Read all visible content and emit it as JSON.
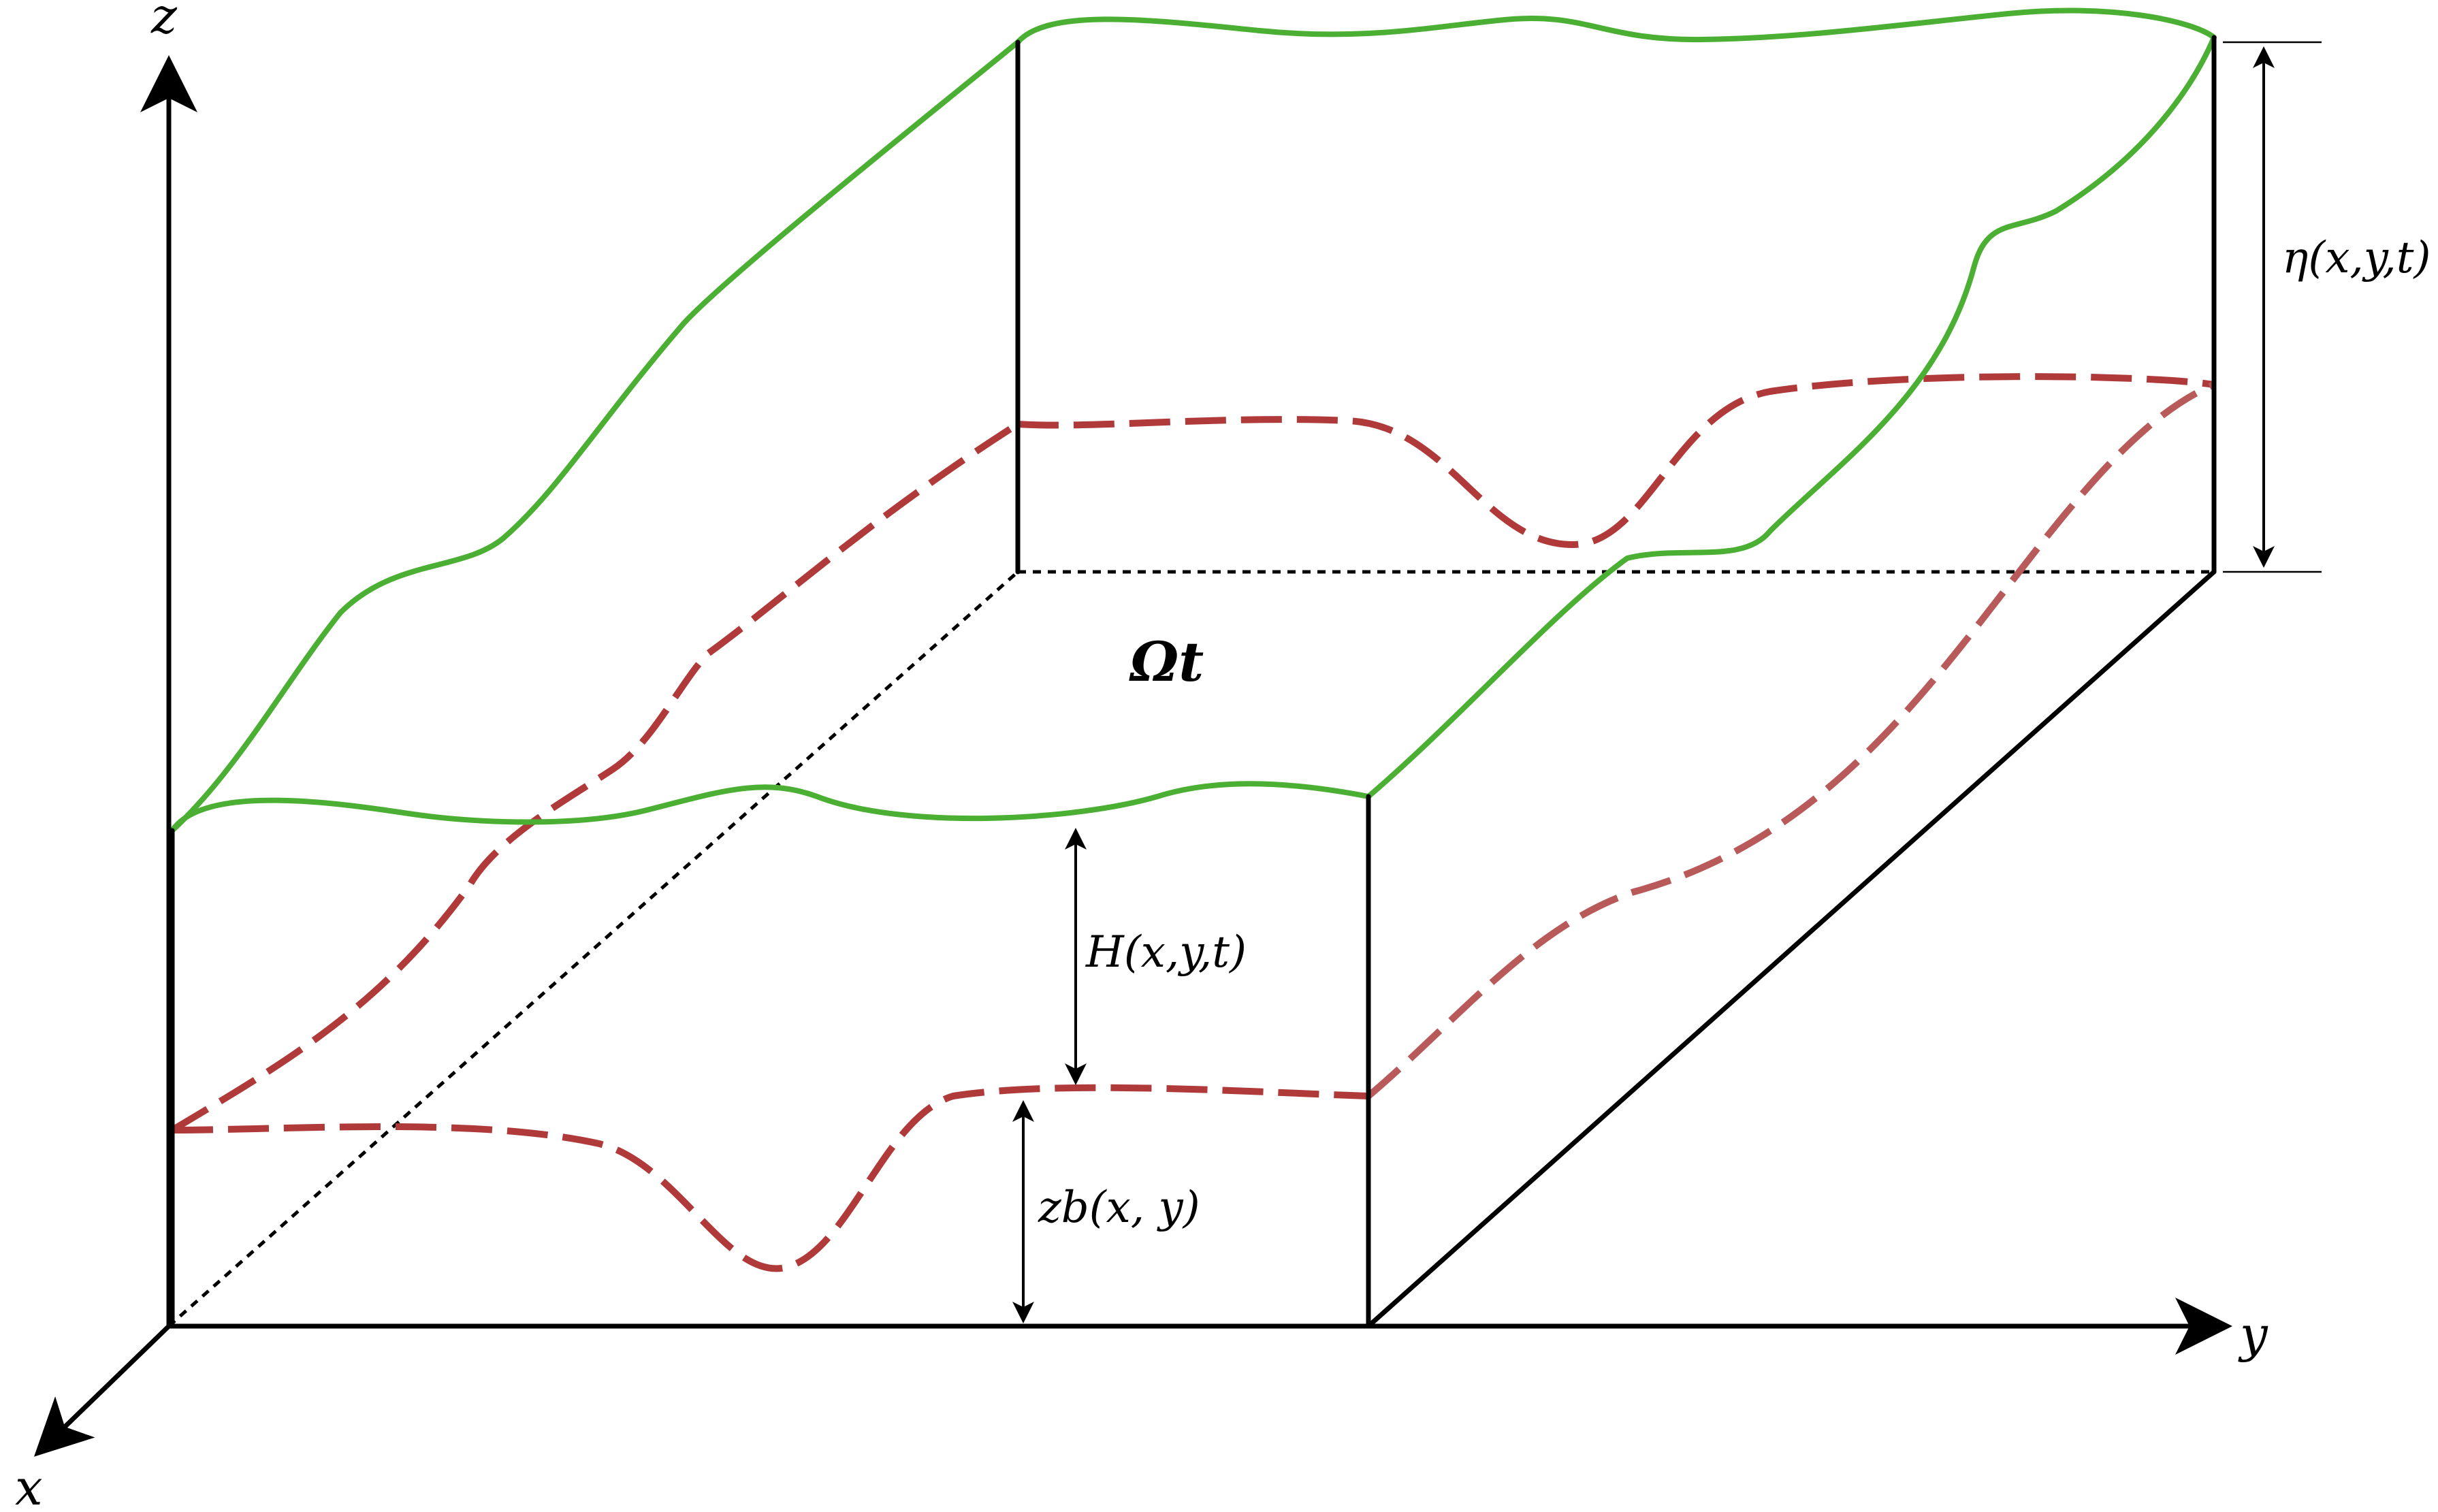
{
  "labels": {
    "axis_x": "x",
    "axis_y": "y",
    "axis_z": "z",
    "domain": "Ωt",
    "depth": "H(x,y,t)",
    "bed_elevation": "zb(x, y)",
    "free_surface_elevation": "η(x,y,t)"
  },
  "colors": {
    "free_surface": "#4aaf32",
    "bed": "#b03a3a",
    "bed_far": "#b85a5a",
    "lines": "#000000"
  }
}
